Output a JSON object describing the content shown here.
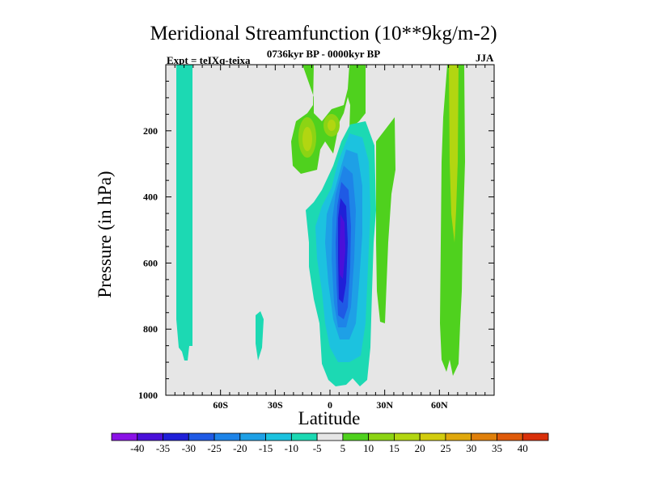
{
  "chart_data": {
    "type": "heatmap",
    "title": "Meridional Streamfunction (10**9kg/m-2)",
    "subtitle": "0736kyr BP - 0000kyr BP",
    "experiment": "Expt = teIXq-teixa",
    "season": "JJA",
    "xlabel": "Latitude",
    "ylabel": "Pressure (in hPa)",
    "xlim": [
      -90,
      90
    ],
    "ylim": [
      1000,
      0
    ],
    "x_ticks": [
      {
        "value": -60,
        "label": "60S"
      },
      {
        "value": -30,
        "label": "30S"
      },
      {
        "value": 0,
        "label": "0"
      },
      {
        "value": 30,
        "label": "30N"
      },
      {
        "value": 60,
        "label": "60N"
      }
    ],
    "y_ticks": [
      {
        "value": 200,
        "label": "200"
      },
      {
        "value": 400,
        "label": "400"
      },
      {
        "value": 600,
        "label": "600"
      },
      {
        "value": 800,
        "label": "800"
      },
      {
        "value": 1000,
        "label": "1000"
      }
    ],
    "contour_levels": [
      -40,
      -35,
      -30,
      -25,
      -20,
      -15,
      -10,
      -5,
      5,
      10,
      15,
      20,
      25,
      30,
      35,
      40
    ],
    "colorbar_colors": [
      "#8a12e6",
      "#4a10d9",
      "#2020d8",
      "#1f5ae5",
      "#1e84e8",
      "#1ea0e6",
      "#1cc2df",
      "#1cd9b3",
      "#e6e6e6",
      "#4fd11e",
      "#8cd414",
      "#b2d611",
      "#d2cc0e",
      "#e0a80c",
      "#e0800b",
      "#df5a0a",
      "#d9300a"
    ],
    "features": [
      {
        "name": "cell-60N-band",
        "type": "positive",
        "x_range": [
          56,
          66
        ],
        "p_range": [
          0,
          960
        ],
        "peak": 15
      },
      {
        "name": "cell-30N-band",
        "type": "positive",
        "x_range": [
          27,
          37
        ],
        "p_range": [
          160,
          800
        ],
        "peak": 5
      },
      {
        "name": "upper-positive-cell",
        "type": "positive",
        "x_range": [
          -20,
          7
        ],
        "p_range": [
          0,
          300
        ],
        "peak": 15
      },
      {
        "name": "main-negative-cell",
        "type": "negative",
        "x_range": [
          -12,
          25
        ],
        "p_range": [
          150,
          990
        ],
        "peak": -40
      },
      {
        "name": "cell-80S-band",
        "type": "negative",
        "x_range": [
          -83,
          -73
        ],
        "p_range": [
          0,
          880
        ],
        "peak": -10
      },
      {
        "name": "cell-38S-small",
        "type": "negative",
        "x_range": [
          -39,
          -34
        ],
        "p_range": [
          740,
          870
        ],
        "peak": -10
      }
    ]
  }
}
